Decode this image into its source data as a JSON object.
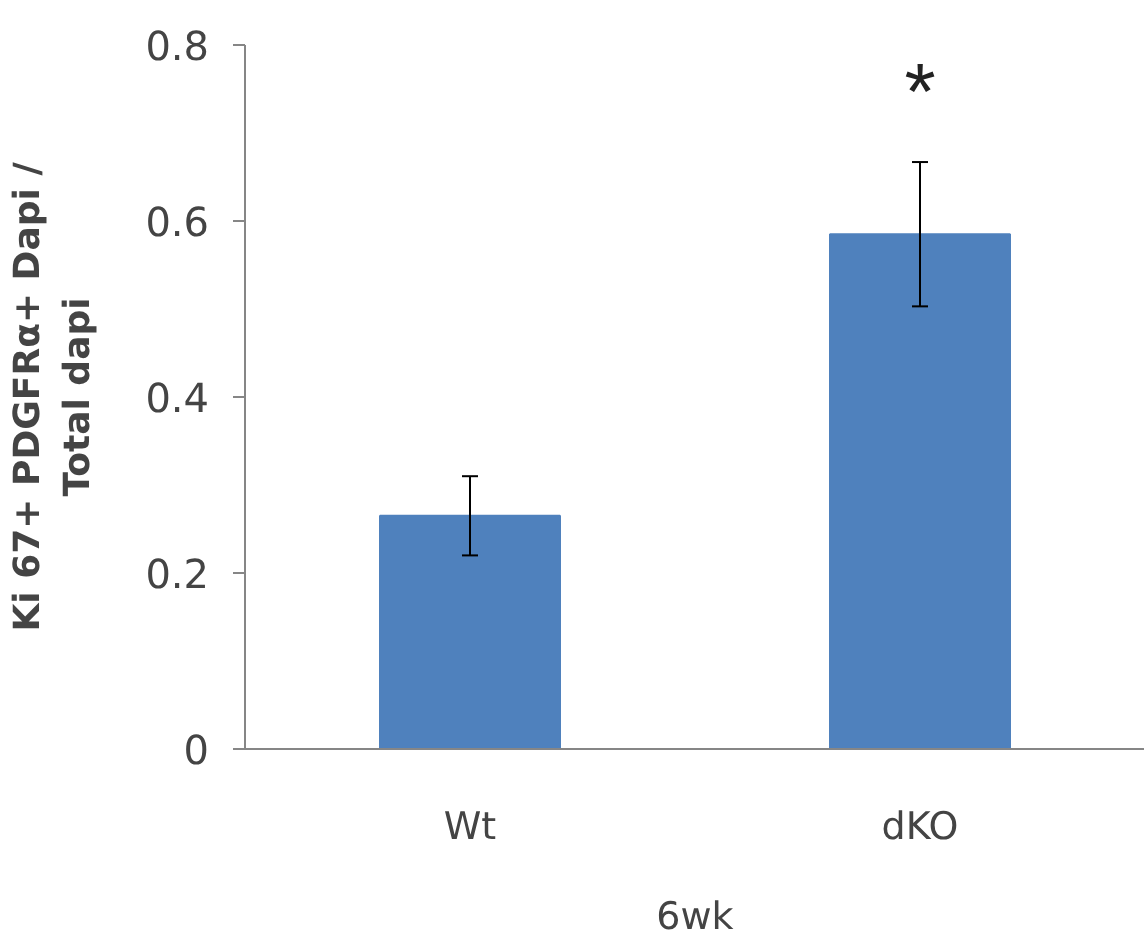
{
  "chart_data": {
    "type": "bar",
    "xlabel": "6wk",
    "ylabel": "Ki 67+ PDGFRα+ Dapi /\nTotal dapi",
    "categories": [
      "Wt",
      "dKO"
    ],
    "values": [
      0.265,
      0.585
    ],
    "errors": [
      0.045,
      0.082
    ],
    "color": "#4f81bd",
    "ylim": [
      0,
      0.8
    ],
    "yticks": [
      0,
      0.2,
      0.4,
      0.6,
      0.8
    ],
    "grid": false,
    "annotations": [
      "*"
    ]
  }
}
